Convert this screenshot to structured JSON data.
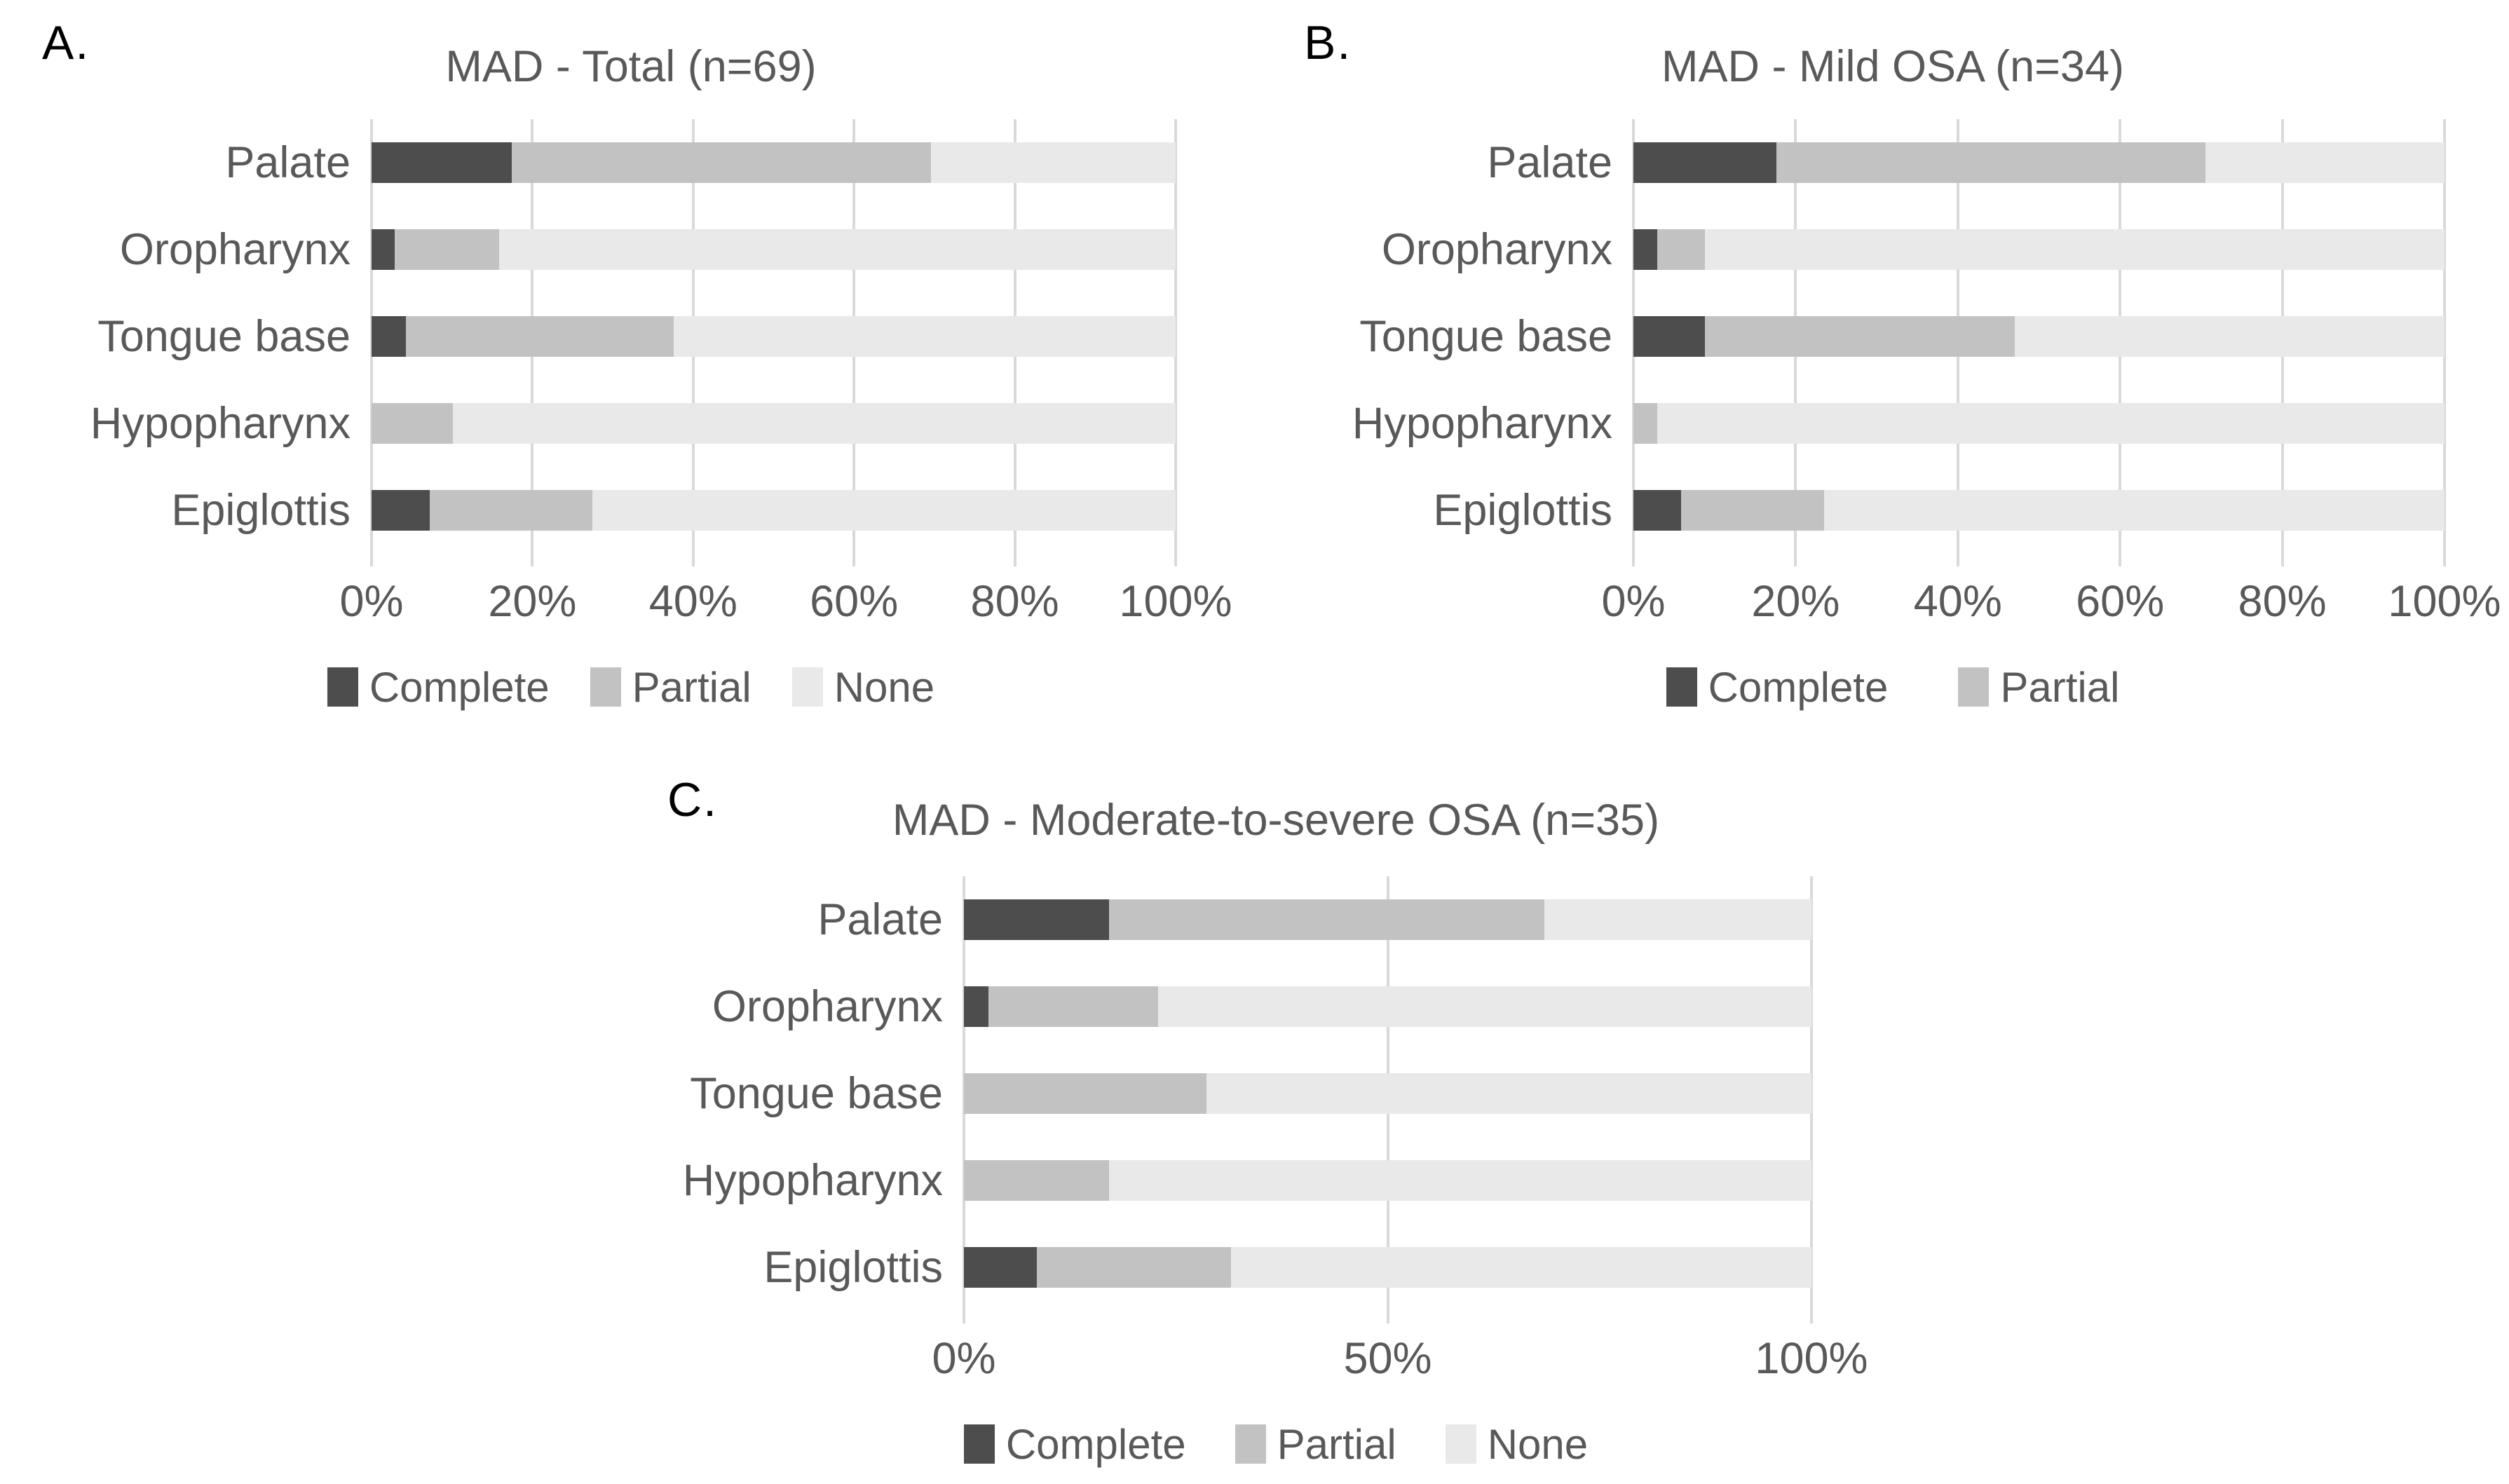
{
  "figure": {
    "background": "#ffffff",
    "text_color": "#595959",
    "panel_letter_color": "#000000",
    "gridline_color": "#d9d9d9"
  },
  "chart_data": [
    {
      "type": "bar",
      "orientation": "horizontal-stacked",
      "panel_label": "A.",
      "title": "MAD - Total (n=69)",
      "categories": [
        "Palate",
        "Oropharynx",
        "Tongue base",
        "Hypopharynx",
        "Epiglottis"
      ],
      "series": [
        {
          "name": "Complete",
          "color": "#4d4d4d",
          "values": [
            17.4,
            2.9,
            4.3,
            0,
            7.2
          ]
        },
        {
          "name": "Partial",
          "color": "#c2c2c2",
          "values": [
            52.2,
            13.0,
            33.3,
            10.1,
            20.3
          ]
        },
        {
          "name": "None",
          "color": "#e9e9e9",
          "values": [
            30.4,
            84.1,
            62.4,
            89.9,
            72.5
          ]
        }
      ],
      "value_unit": "% of patients",
      "xlim": [
        0,
        100
      ],
      "x_ticks": [
        "0%",
        "20%",
        "40%",
        "60%",
        "80%",
        "100%"
      ],
      "grid": "vertical",
      "legend": [
        "Complete",
        "Partial",
        "None"
      ],
      "legend_position": "bottom"
    },
    {
      "type": "bar",
      "orientation": "horizontal-stacked",
      "panel_label": "B.",
      "title": "MAD - Mild OSA (n=34)",
      "categories": [
        "Palate",
        "Oropharynx",
        "Tongue base",
        "Hypopharynx",
        "Epiglottis"
      ],
      "series": [
        {
          "name": "Complete",
          "color": "#4d4d4d",
          "values": [
            17.6,
            2.9,
            8.8,
            0,
            5.9
          ]
        },
        {
          "name": "Partial",
          "color": "#c2c2c2",
          "values": [
            52.9,
            5.9,
            38.2,
            2.9,
            17.6
          ]
        },
        {
          "name": "None",
          "color": "#e9e9e9",
          "values": [
            29.5,
            91.2,
            53.0,
            97.1,
            76.5
          ]
        }
      ],
      "value_unit": "% of patients",
      "xlim": [
        0,
        100
      ],
      "x_ticks": [
        "0%",
        "20%",
        "40%",
        "60%",
        "80%",
        "100%"
      ],
      "grid": "vertical",
      "legend": [
        "Complete",
        "Partial"
      ],
      "legend_position": "bottom"
    },
    {
      "type": "bar",
      "orientation": "horizontal-stacked",
      "panel_label": "C.",
      "title": "MAD - Moderate-to-severe OSA (n=35)",
      "categories": [
        "Palate",
        "Oropharynx",
        "Tongue base",
        "Hypopharynx",
        "Epiglottis"
      ],
      "series": [
        {
          "name": "Complete",
          "color": "#4d4d4d",
          "values": [
            17.1,
            2.9,
            0,
            0,
            8.6
          ]
        },
        {
          "name": "Partial",
          "color": "#c2c2c2",
          "values": [
            51.4,
            20.0,
            28.6,
            17.1,
            22.9
          ]
        },
        {
          "name": "None",
          "color": "#e9e9e9",
          "values": [
            31.5,
            77.1,
            71.4,
            82.9,
            68.5
          ]
        }
      ],
      "value_unit": "% of patients",
      "xlim": [
        0,
        100
      ],
      "x_ticks": [
        "0%",
        "50%",
        "100%"
      ],
      "grid": "vertical",
      "legend": [
        "Complete",
        "Partial",
        "None"
      ],
      "legend_position": "bottom"
    }
  ]
}
